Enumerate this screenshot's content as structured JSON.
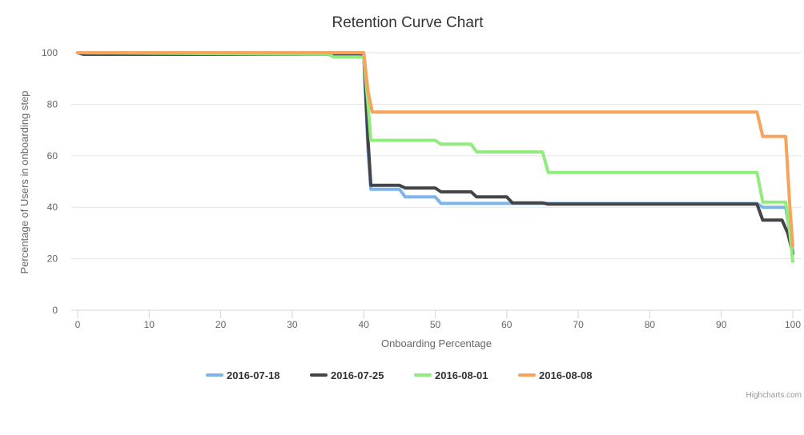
{
  "chart_data": {
    "type": "line",
    "title": "Retention Curve Chart",
    "xlabel": "Onboarding Percentage",
    "ylabel": "Percentage of Users in onboarding step",
    "xlim": [
      0,
      100
    ],
    "ylim": [
      0,
      100
    ],
    "x_ticks": [
      "0",
      "10",
      "20",
      "30",
      "40",
      "50",
      "60",
      "70",
      "80",
      "90",
      "100"
    ],
    "y_ticks": [
      "0",
      "20",
      "40",
      "60",
      "80",
      "100"
    ],
    "grid": "horizontal",
    "legend_position": "bottom-center",
    "series": [
      {
        "name": "2016-07-18",
        "color": "#7cb5ec",
        "points": [
          [
            0,
            100
          ],
          [
            0.8,
            99.4
          ],
          [
            40,
            99.4
          ],
          [
            40.6,
            62
          ],
          [
            41,
            47
          ],
          [
            45,
            47
          ],
          [
            45.8,
            44
          ],
          [
            50,
            44
          ],
          [
            50.8,
            41.5
          ],
          [
            95,
            41.5
          ],
          [
            95.8,
            40
          ],
          [
            99,
            40
          ],
          [
            100,
            23
          ]
        ]
      },
      {
        "name": "2016-07-25",
        "color": "#434348",
        "points": [
          [
            0,
            100
          ],
          [
            0.8,
            99.4
          ],
          [
            40,
            99.4
          ],
          [
            40.6,
            66
          ],
          [
            41,
            48.5
          ],
          [
            45,
            48.5
          ],
          [
            45.8,
            47.5
          ],
          [
            50,
            47.5
          ],
          [
            50.8,
            46
          ],
          [
            55,
            46
          ],
          [
            55.8,
            44
          ],
          [
            60,
            44
          ],
          [
            60.8,
            41.7
          ],
          [
            65,
            41.7
          ],
          [
            65.8,
            41.2
          ],
          [
            95,
            41.2
          ],
          [
            95.8,
            35
          ],
          [
            98.5,
            35
          ],
          [
            99.3,
            30
          ],
          [
            100,
            22
          ]
        ]
      },
      {
        "name": "2016-08-01",
        "color": "#90ed7d",
        "points": [
          [
            0,
            100
          ],
          [
            35,
            99.4
          ],
          [
            35.8,
            98.4
          ],
          [
            40,
            98.4
          ],
          [
            40.6,
            80
          ],
          [
            41,
            66
          ],
          [
            50,
            66
          ],
          [
            50.8,
            64.5
          ],
          [
            55,
            64.5
          ],
          [
            55.8,
            61.5
          ],
          [
            65,
            61.5
          ],
          [
            65.8,
            53.5
          ],
          [
            95,
            53.5
          ],
          [
            95.8,
            42
          ],
          [
            99,
            42
          ],
          [
            99.6,
            30
          ],
          [
            100,
            19
          ]
        ]
      },
      {
        "name": "2016-08-08",
        "color": "#f7a35c",
        "points": [
          [
            0,
            100
          ],
          [
            40,
            100
          ],
          [
            40.6,
            85
          ],
          [
            41.2,
            77
          ],
          [
            95,
            77
          ],
          [
            95.8,
            67.5
          ],
          [
            99,
            67.5
          ],
          [
            99.6,
            40
          ],
          [
            100,
            25
          ]
        ]
      }
    ]
  },
  "credits": "Highcharts.com"
}
